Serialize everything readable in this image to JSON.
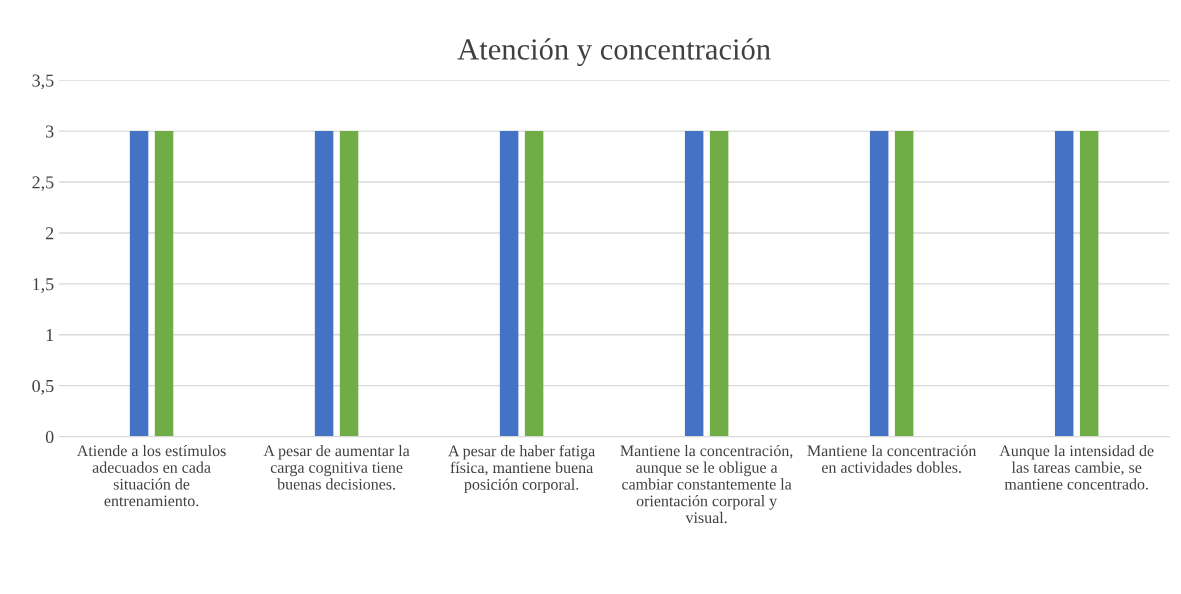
{
  "chart_data": {
    "type": "bar",
    "title": "Atención y concentración",
    "categories": [
      "Atiende a los estímulos\nadecuados en cada\nsituación de\nentrenamiento.",
      "A pesar de aumentar la\ncarga cognitiva tiene\nbuenas decisiones.",
      "A pesar de haber fatiga\nfísica, mantiene buena\nposición corporal.",
      "Mantiene la concentración,\naunque se le obligue a\ncambiar constantemente la\norientación corporal y\nvisual.",
      "Mantiene la concentración\nen actividades dobles.",
      "Aunque la intensidad de\nlas tareas cambie, se\nmantiene concentrado."
    ],
    "series": [
      {
        "color": "#4472c4",
        "values": [
          3,
          3,
          3,
          3,
          3,
          3
        ]
      },
      {
        "color": "#70ad47",
        "values": [
          3,
          3,
          3,
          3,
          3,
          3
        ]
      }
    ],
    "ylim": [
      0,
      3.5
    ],
    "yticks": [
      0,
      {
        "value": 0.5,
        "label": "0,5"
      },
      1,
      {
        "value": 1.5,
        "label": "1,5"
      },
      2,
      {
        "value": 2.5,
        "label": "2,5"
      },
      3,
      {
        "value": 3.5,
        "label": "3,5"
      }
    ],
    "grid": "y",
    "legend": false
  }
}
